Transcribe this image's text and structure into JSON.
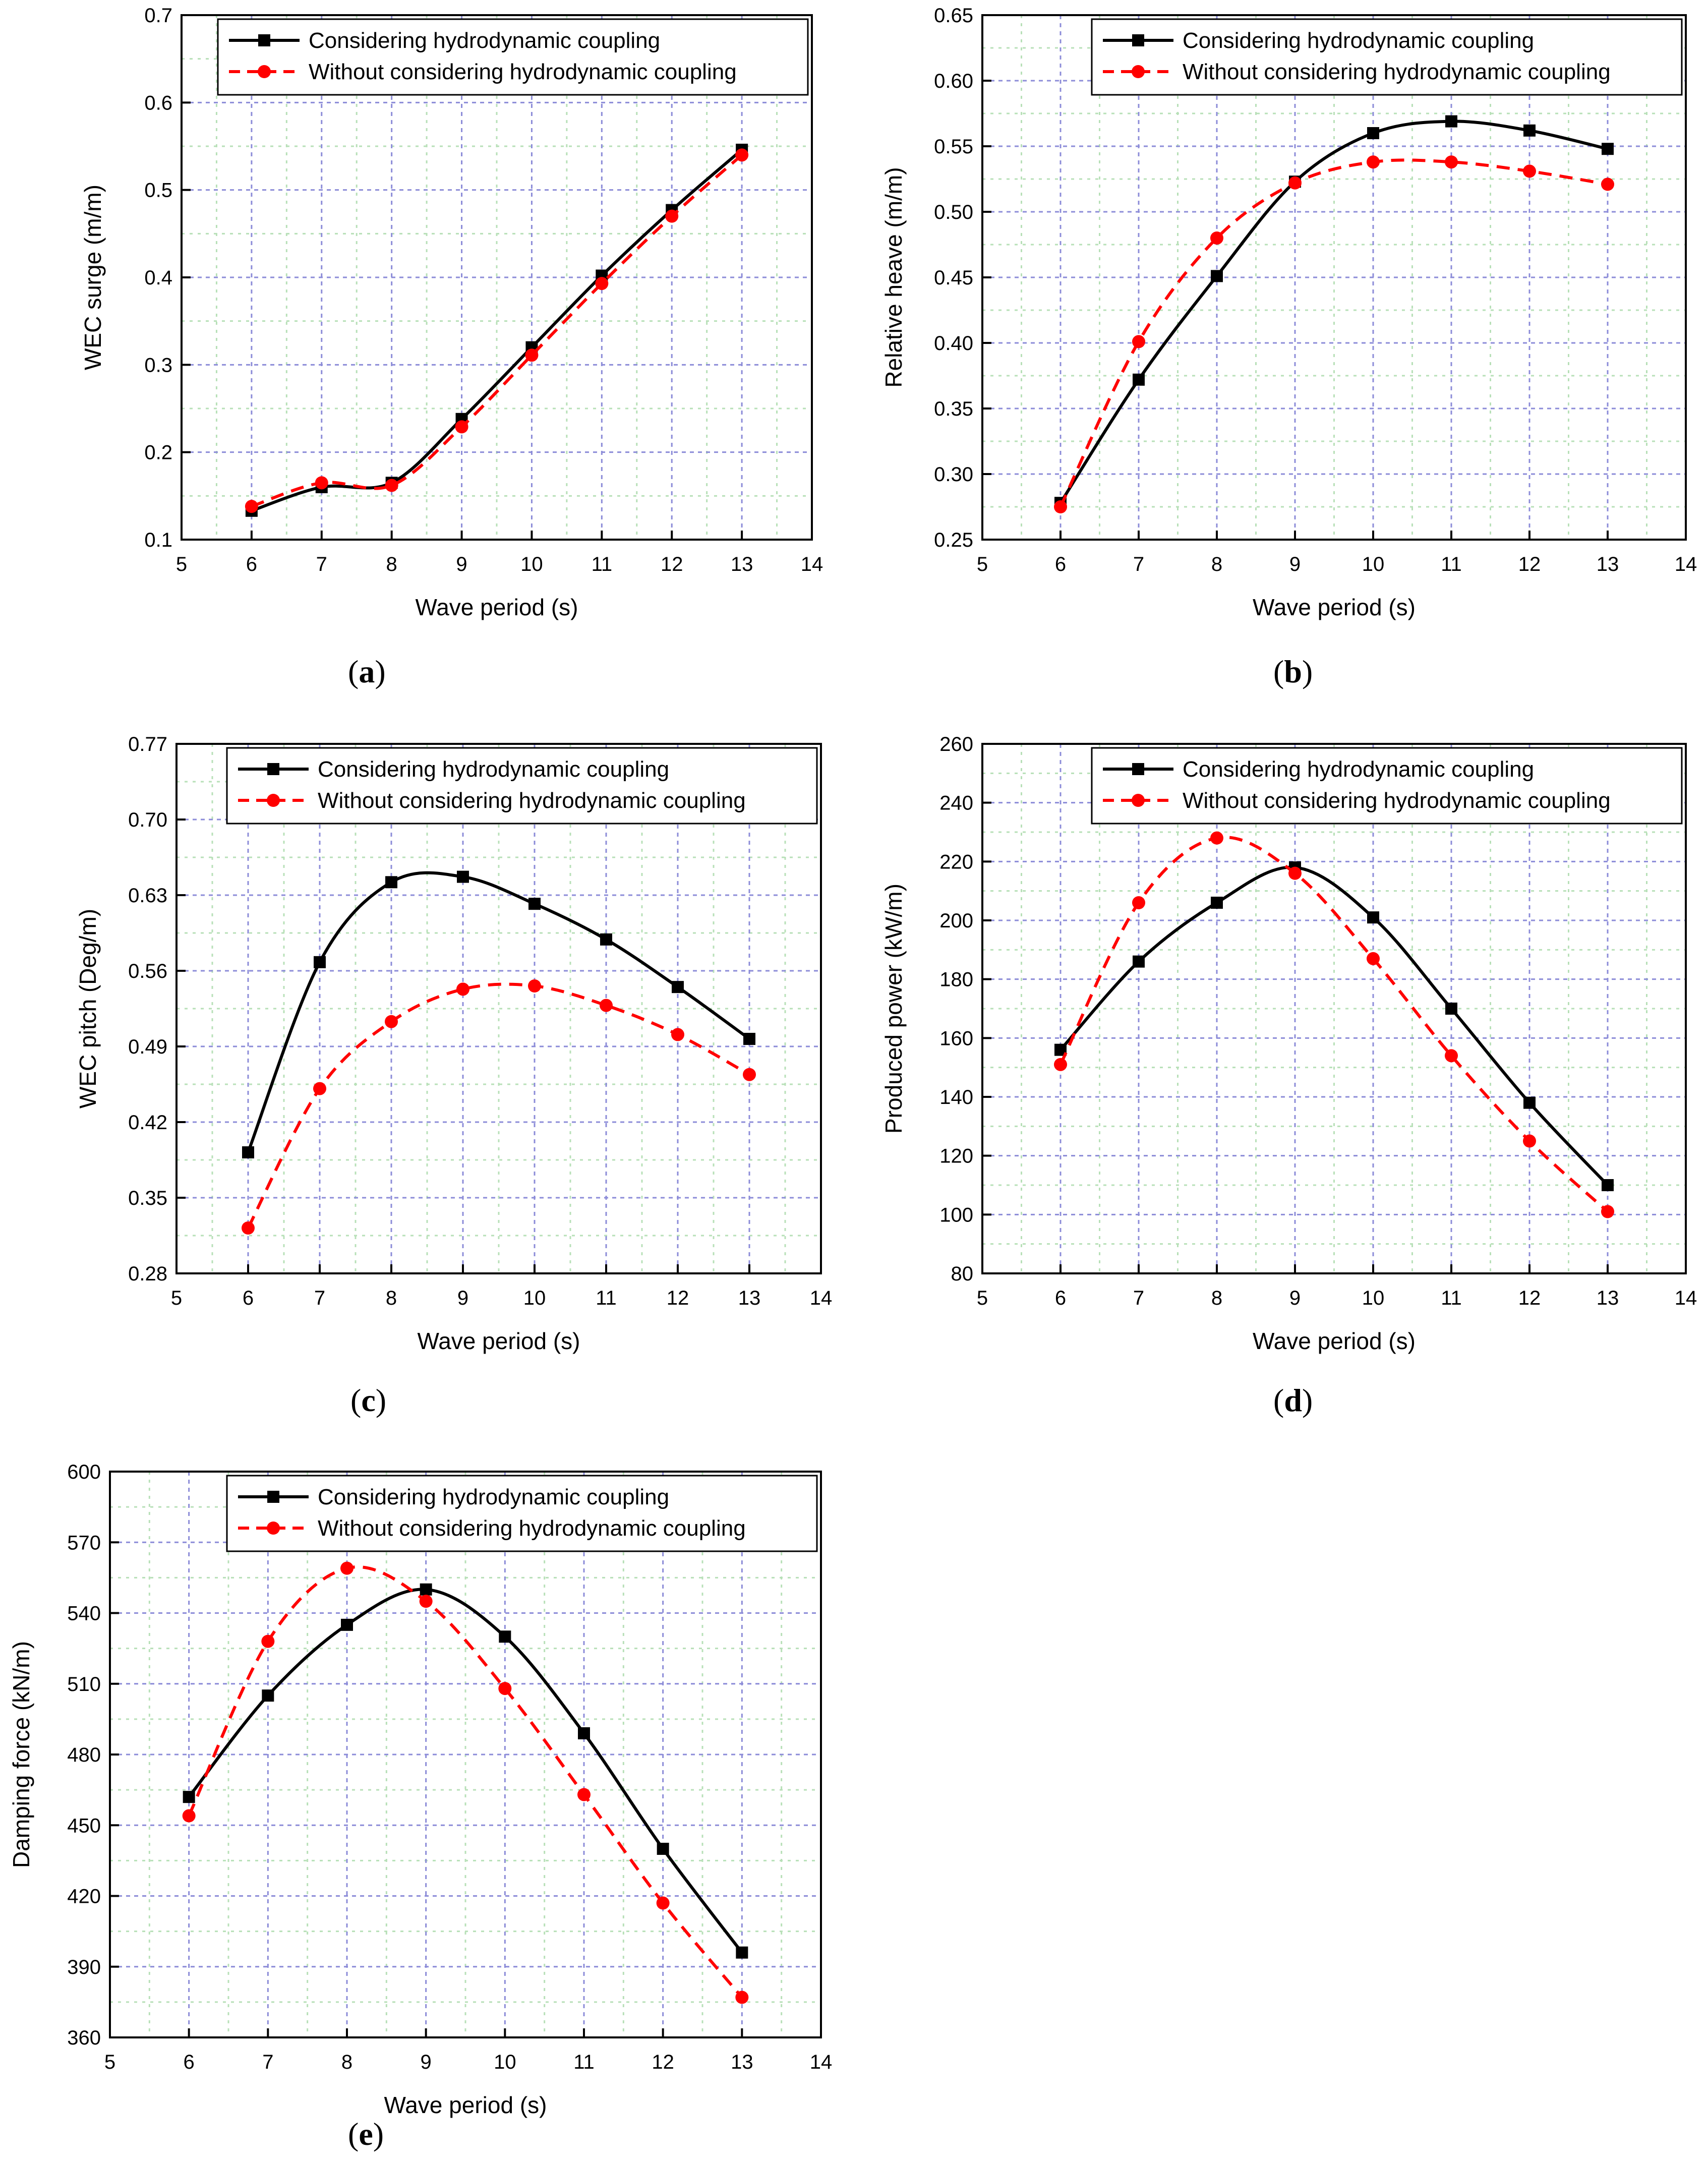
{
  "colors": {
    "considering": "#000000",
    "without": "#ff0000",
    "grid_major": "#8c8cd8",
    "grid_minor": "#b8e0b8",
    "frame": "#000000"
  },
  "chart_data": [
    {
      "id": "a",
      "label_prefix": "(",
      "label_letter": "a",
      "label_suffix": ")",
      "type": "line",
      "xlabel": "Wave period (s)",
      "ylabel": "WEC surge (m/m)",
      "xlim": [
        5,
        14
      ],
      "ylim": [
        0.1,
        0.7
      ],
      "xticks": [
        "5",
        "6",
        "7",
        "8",
        "9",
        "10",
        "11",
        "12",
        "13",
        "14"
      ],
      "yticks": [
        "0.1",
        "0.2",
        "0.3",
        "0.4",
        "0.5",
        "0.6",
        "0.7"
      ],
      "legend_position": "top-right",
      "x": [
        6,
        7,
        8,
        9,
        10,
        11,
        12,
        13
      ],
      "series": [
        {
          "name": "Considering hydrodynamic coupling",
          "style": "solid-square",
          "values": [
            0.133,
            0.16,
            0.165,
            0.238,
            0.32,
            0.402,
            0.477,
            0.546
          ]
        },
        {
          "name": "Without considering hydrodynamic coupling",
          "style": "dashed-circle",
          "values": [
            0.138,
            0.165,
            0.162,
            0.229,
            0.311,
            0.393,
            0.47,
            0.54
          ]
        }
      ]
    },
    {
      "id": "b",
      "label_prefix": "(",
      "label_letter": "b",
      "label_suffix": ")",
      "type": "line",
      "xlabel": "Wave period (s)",
      "ylabel": "Relative heave (m/m)",
      "xlim": [
        5,
        14
      ],
      "ylim": [
        0.25,
        0.65
      ],
      "xticks": [
        "5",
        "6",
        "7",
        "8",
        "9",
        "10",
        "11",
        "12",
        "13",
        "14"
      ],
      "yticks": [
        "0.25",
        "0.30",
        "0.35",
        "0.40",
        "0.45",
        "0.50",
        "0.55",
        "0.60",
        "0.65"
      ],
      "legend_position": "top-right",
      "x": [
        6,
        7,
        8,
        9,
        10,
        11,
        12,
        13
      ],
      "series": [
        {
          "name": "Considering hydrodynamic coupling",
          "style": "solid-square",
          "values": [
            0.278,
            0.372,
            0.451,
            0.523,
            0.56,
            0.569,
            0.562,
            0.548
          ]
        },
        {
          "name": "Without considering hydrodynamic coupling",
          "style": "dashed-circle",
          "values": [
            0.275,
            0.401,
            0.48,
            0.522,
            0.538,
            0.538,
            0.531,
            0.521
          ]
        }
      ]
    },
    {
      "id": "c",
      "label_prefix": "(",
      "label_letter": "c",
      "label_suffix": ")",
      "type": "line",
      "xlabel": "Wave period (s)",
      "ylabel": "WEC pitch (Deg/m)",
      "xlim": [
        5,
        14
      ],
      "ylim": [
        0.28,
        0.77
      ],
      "xticks": [
        "5",
        "6",
        "7",
        "8",
        "9",
        "10",
        "11",
        "12",
        "13",
        "14"
      ],
      "yticks": [
        "0.28",
        "0.35",
        "0.42",
        "0.49",
        "0.56",
        "0.63",
        "0.70",
        "0.77"
      ],
      "legend_position": "top-right",
      "x": [
        6,
        7,
        8,
        9,
        10,
        11,
        12,
        13
      ],
      "series": [
        {
          "name": "Considering hydrodynamic coupling",
          "style": "solid-square",
          "values": [
            0.392,
            0.568,
            0.642,
            0.647,
            0.622,
            0.589,
            0.545,
            0.497
          ]
        },
        {
          "name": "Without considering hydrodynamic coupling",
          "style": "dashed-circle",
          "values": [
            0.322,
            0.451,
            0.513,
            0.543,
            0.546,
            0.528,
            0.501,
            0.464
          ]
        }
      ]
    },
    {
      "id": "d",
      "label_prefix": "(",
      "label_letter": "d",
      "label_suffix": ")",
      "type": "line",
      "xlabel": "Wave period (s)",
      "ylabel": "Produced power (kW/m)",
      "xlim": [
        5,
        14
      ],
      "ylim": [
        80,
        260
      ],
      "xticks": [
        "5",
        "6",
        "7",
        "8",
        "9",
        "10",
        "11",
        "12",
        "13",
        "14"
      ],
      "yticks": [
        "80",
        "100",
        "120",
        "140",
        "160",
        "180",
        "200",
        "220",
        "240",
        "260"
      ],
      "legend_position": "top-right",
      "x": [
        6,
        7,
        8,
        9,
        10,
        11,
        12,
        13
      ],
      "series": [
        {
          "name": "Considering hydrodynamic coupling",
          "style": "solid-square",
          "values": [
            156,
            186,
            206,
            218,
            201,
            170,
            138,
            110
          ]
        },
        {
          "name": "Without considering hydrodynamic coupling",
          "style": "dashed-circle",
          "values": [
            151,
            206,
            228,
            216,
            187,
            154,
            125,
            101
          ]
        }
      ]
    },
    {
      "id": "e",
      "label_prefix": "(",
      "label_letter": "e",
      "label_suffix": ")",
      "type": "line",
      "xlabel": "Wave period (s)",
      "ylabel": "Damping force (kN/m)",
      "xlim": [
        5,
        14
      ],
      "ylim": [
        360,
        600
      ],
      "xticks": [
        "5",
        "6",
        "7",
        "8",
        "9",
        "10",
        "11",
        "12",
        "13",
        "14"
      ],
      "yticks": [
        "360",
        "390",
        "420",
        "450",
        "480",
        "510",
        "540",
        "570",
        "600"
      ],
      "legend_position": "top-right",
      "x": [
        6,
        7,
        8,
        9,
        10,
        11,
        12,
        13
      ],
      "series": [
        {
          "name": "Considering hydrodynamic coupling",
          "style": "solid-square",
          "values": [
            462,
            505,
            535,
            550,
            530,
            489,
            440,
            396
          ]
        },
        {
          "name": "Without considering hydrodynamic coupling",
          "style": "dashed-circle",
          "values": [
            454,
            528,
            559,
            545,
            508,
            463,
            417,
            377
          ]
        }
      ]
    }
  ]
}
